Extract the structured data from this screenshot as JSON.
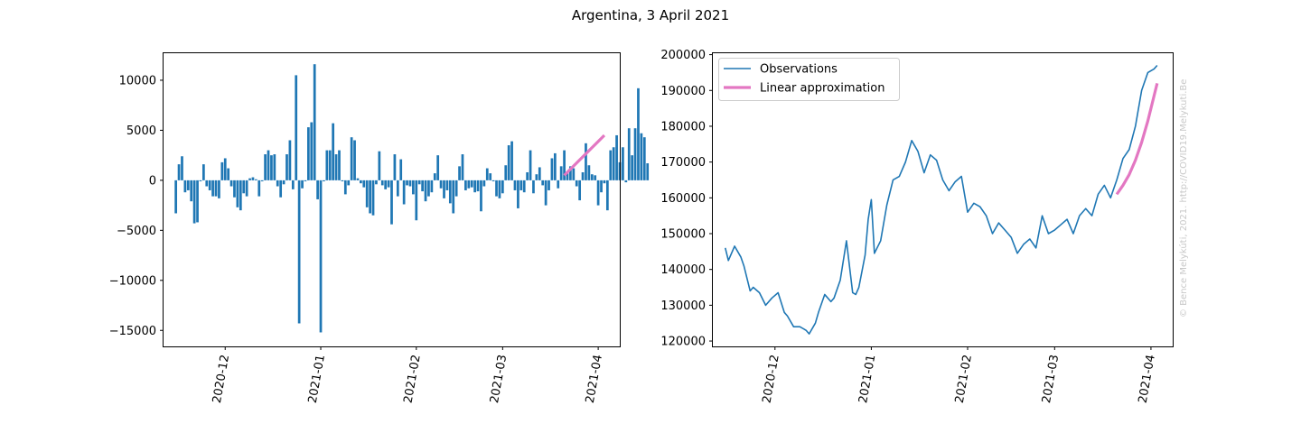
{
  "title": "Argentina, 3 April 2021",
  "watermark": "© Bence Melykúti, 2021. http://COVID19.Melykuti.Be",
  "colors": {
    "bars": "#1f77b4",
    "observations": "#1f77b4",
    "approximation": "#e377c2"
  },
  "chart_data": [
    {
      "type": "bar",
      "xlim": [
        "2020-11-11",
        "2021-04-08"
      ],
      "ylim": [
        -16600,
        12700
      ],
      "grid": false,
      "xticks": [
        "2020-12",
        "2021-01",
        "2021-02",
        "2021-03",
        "2021-04"
      ],
      "yticks": [
        10000,
        5000,
        0,
        -5000,
        -10000,
        -15000
      ],
      "ytick_labels": [
        "10000",
        "5000",
        "0",
        "−5000",
        "−10000",
        "−15000"
      ],
      "bars_start_date": "2020-11-15",
      "values": [
        -3300,
        1600,
        2400,
        -1200,
        -1000,
        -2100,
        -4300,
        -4200,
        -100,
        1600,
        -600,
        -1000,
        -1600,
        -1600,
        -1800,
        1800,
        2200,
        1200,
        -600,
        -1700,
        -2700,
        -3000,
        -1300,
        -1600,
        200,
        300,
        100,
        -1600,
        -100,
        2600,
        3000,
        2500,
        2600,
        -600,
        -1700,
        -400,
        2600,
        4000,
        -900,
        10500,
        -14300,
        -800,
        -100,
        5300,
        5800,
        11600,
        -1900,
        -15200,
        -100,
        3000,
        3000,
        5700,
        2600,
        3000,
        -100,
        -1400,
        -500,
        4300,
        4000,
        200,
        -300,
        -700,
        -2700,
        -3300,
        -3500,
        -400,
        2900,
        -500,
        -900,
        -700,
        -4400,
        2600,
        -1600,
        2100,
        -2400,
        -500,
        -600,
        -1400,
        -4000,
        -400,
        -1100,
        -2100,
        -1600,
        -1200,
        700,
        2500,
        -800,
        -1800,
        -1000,
        -2300,
        -3300,
        -1600,
        1400,
        2600,
        -1000,
        -800,
        -700,
        -1200,
        -1100,
        -3100,
        -600,
        1200,
        700,
        -100,
        -1600,
        -1800,
        -1300,
        1500,
        3500,
        3900,
        -1000,
        -2800,
        -1000,
        -1200,
        800,
        3000,
        -1300,
        600,
        1300,
        -500,
        -2500,
        -1000,
        2200,
        2700,
        -800,
        1400,
        3000,
        700,
        1400,
        1200,
        -600,
        -2000,
        800,
        3700,
        1500,
        600,
        500,
        -2500,
        -1200,
        -300,
        -3000,
        3000,
        3300,
        4500,
        1800,
        3300,
        -200,
        5200,
        2500,
        5200,
        9200,
        4700,
        4300,
        1700
      ],
      "linear_approximation": {
        "x": [
          "2021-03-21",
          "2021-04-03"
        ],
        "y": [
          500,
          4500
        ]
      }
    },
    {
      "type": "line",
      "xlim": [
        "2020-11-11",
        "2021-04-08"
      ],
      "ylim": [
        118500,
        200400
      ],
      "grid": false,
      "legend": "upper left",
      "xticks": [
        "2020-12",
        "2021-01",
        "2021-02",
        "2021-03",
        "2021-04"
      ],
      "yticks": [
        200000,
        190000,
        180000,
        170000,
        160000,
        150000,
        140000,
        130000,
        120000
      ],
      "series": [
        {
          "name": "Observations",
          "x": [
            "2020-11-15",
            "2020-11-16",
            "2020-11-18",
            "2020-11-20",
            "2020-11-21",
            "2020-11-23",
            "2020-11-24",
            "2020-11-26",
            "2020-11-28",
            "2020-11-30",
            "2020-12-02",
            "2020-12-04",
            "2020-12-05",
            "2020-12-07",
            "2020-12-09",
            "2020-12-11",
            "2020-12-12",
            "2020-12-14",
            "2020-12-15",
            "2020-12-17",
            "2020-12-19",
            "2020-12-20",
            "2020-12-22",
            "2020-12-24",
            "2020-12-26",
            "2020-12-27",
            "2020-12-28",
            "2020-12-30",
            "2020-12-31",
            "2021-01-01",
            "2021-01-02",
            "2021-01-04",
            "2021-01-06",
            "2021-01-08",
            "2021-01-10",
            "2021-01-12",
            "2021-01-14",
            "2021-01-16",
            "2021-01-18",
            "2021-01-20",
            "2021-01-22",
            "2021-01-24",
            "2021-01-26",
            "2021-01-28",
            "2021-01-30",
            "2021-02-01",
            "2021-02-03",
            "2021-02-05",
            "2021-02-07",
            "2021-02-09",
            "2021-02-11",
            "2021-02-13",
            "2021-02-15",
            "2021-02-17",
            "2021-02-19",
            "2021-02-21",
            "2021-02-23",
            "2021-02-25",
            "2021-02-27",
            "2021-03-01",
            "2021-03-03",
            "2021-03-05",
            "2021-03-07",
            "2021-03-09",
            "2021-03-11",
            "2021-03-13",
            "2021-03-15",
            "2021-03-17",
            "2021-03-19",
            "2021-03-21",
            "2021-03-23",
            "2021-03-25",
            "2021-03-27",
            "2021-03-29",
            "2021-03-31",
            "2021-04-02",
            "2021-04-03"
          ],
          "y": [
            146000,
            142500,
            146500,
            143500,
            141000,
            134000,
            135000,
            133500,
            130000,
            132000,
            133500,
            128000,
            127000,
            124000,
            124000,
            123000,
            122000,
            125000,
            128000,
            133000,
            131000,
            132000,
            137000,
            148000,
            133500,
            133000,
            135000,
            144000,
            154000,
            159500,
            144500,
            148000,
            158000,
            165000,
            166000,
            170000,
            176000,
            173000,
            167000,
            172000,
            170500,
            165000,
            162000,
            164500,
            166000,
            156000,
            158500,
            157500,
            155000,
            150000,
            153000,
            151000,
            149000,
            144500,
            147000,
            148500,
            146000,
            155000,
            150000,
            151000,
            152500,
            154000,
            150000,
            155000,
            157000,
            155000,
            161000,
            163500,
            160000,
            165000,
            171000,
            173500,
            180000,
            190000,
            195000,
            196000,
            197000
          ]
        },
        {
          "name": "Linear approximation",
          "x": [
            "2021-03-21",
            "2021-03-23",
            "2021-03-25",
            "2021-03-27",
            "2021-03-29",
            "2021-03-31",
            "2021-04-02",
            "2021-04-03"
          ],
          "y": [
            161000,
            163500,
            166500,
            170500,
            175500,
            181500,
            188500,
            192000
          ]
        }
      ]
    }
  ]
}
